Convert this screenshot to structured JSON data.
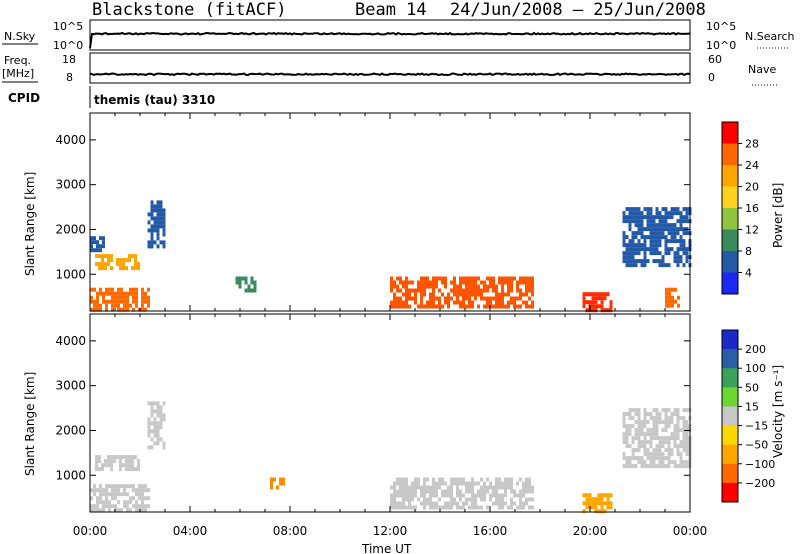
{
  "header": {
    "station": "Blackstone (fitACF)",
    "beam": "Beam 14",
    "date_range": "24/Jun/2008 – 25/Jun/2008"
  },
  "top_panels": {
    "nsky_label": "N.Sky",
    "nsky_ticks": [
      "10^5",
      "10^0"
    ],
    "nsearch_label": "N.Search",
    "nsearch_ticks": [
      "10^5",
      "10^0"
    ],
    "freq_label": "Freq.",
    "freq_unit": "[MHz]",
    "freq_ticks": [
      "18",
      "8"
    ],
    "nave_label": "Nave",
    "nave_ticks": [
      "60",
      "0"
    ],
    "cpid_label": "CPID",
    "cpid_value": "themis (tau) 3310"
  },
  "axes": {
    "ylabel": "Slant Range [km]",
    "y_ticks": [
      "4000",
      "3000",
      "2000",
      "1000"
    ],
    "x_ticks": [
      "00:00",
      "04:00",
      "08:00",
      "12:00",
      "16:00",
      "20:00",
      "00:00"
    ],
    "xlabel": "Time UT"
  },
  "colorbars": {
    "power": {
      "label": "Power [dB]",
      "ticks": [
        "28",
        "24",
        "20",
        "16",
        "12",
        "8",
        "4"
      ],
      "colors": [
        "#ff0000",
        "#ff6600",
        "#ffa500",
        "#ffd21f",
        "#8fc63f",
        "#3a8a5c",
        "#2459a8",
        "#1a28f0"
      ]
    },
    "velocity": {
      "label": "Velocity [m s⁻¹]",
      "ticks": [
        "200",
        "100",
        "50",
        "15",
        "−15",
        "−50",
        "−100",
        "−200"
      ],
      "colors": [
        "#1a28c8",
        "#2a5fa8",
        "#3aa05a",
        "#6cd632",
        "#c8c8c8",
        "#ffd700",
        "#ffa500",
        "#ff6a00",
        "#ff0000"
      ]
    }
  },
  "chart_data": [
    {
      "type": "heatmap",
      "panel": "power",
      "x_range_hours": [
        0,
        24
      ],
      "y_range_km": [
        180,
        4600
      ],
      "regions": [
        {
          "x": [
            0.0,
            2.3
          ],
          "y": [
            200,
            700
          ],
          "value": "high",
          "color": "#ff6a00"
        },
        {
          "x": [
            0.2,
            2.0
          ],
          "y": [
            1150,
            1450
          ],
          "value": "mid",
          "color": "#ffa500"
        },
        {
          "x": [
            0.0,
            0.6
          ],
          "y": [
            1500,
            1850
          ],
          "value": "low",
          "color": "#2459a8"
        },
        {
          "x": [
            2.3,
            3.0
          ],
          "y": [
            1650,
            2650
          ],
          "value": "low",
          "color": "#2459a8"
        },
        {
          "x": [
            5.7,
            6.6
          ],
          "y": [
            650,
            950
          ],
          "value": "mid",
          "color": "#3a8a5c"
        },
        {
          "x": [
            12.0,
            17.7
          ],
          "y": [
            250,
            950
          ],
          "value": "high",
          "color": "#ff5500"
        },
        {
          "x": [
            19.7,
            20.8
          ],
          "y": [
            200,
            600
          ],
          "value": "high",
          "color": "#ff2a00"
        },
        {
          "x": [
            21.3,
            24.0
          ],
          "y": [
            1200,
            2500
          ],
          "value": "low",
          "color": "#2459a8"
        },
        {
          "x": [
            23.0,
            23.6
          ],
          "y": [
            300,
            700
          ],
          "value": "mid",
          "color": "#ff6a00"
        }
      ]
    },
    {
      "type": "heatmap",
      "panel": "velocity",
      "x_range_hours": [
        0,
        24
      ],
      "y_range_km": [
        180,
        4600
      ],
      "regions": [
        {
          "x": [
            0.0,
            2.3
          ],
          "y": [
            200,
            800
          ],
          "value": "ground scatter",
          "color": "#c8c8c8"
        },
        {
          "x": [
            0.2,
            2.0
          ],
          "y": [
            1150,
            1450
          ],
          "value": "ground scatter",
          "color": "#c8c8c8"
        },
        {
          "x": [
            2.3,
            3.0
          ],
          "y": [
            1650,
            2650
          ],
          "value": "ground scatter",
          "color": "#c8c8c8"
        },
        {
          "x": [
            7.2,
            7.8
          ],
          "y": [
            750,
            950
          ],
          "value": "-100",
          "color": "#ff8c00"
        },
        {
          "x": [
            12.0,
            17.7
          ],
          "y": [
            250,
            950
          ],
          "value": "ground scatter",
          "color": "#c8c8c8"
        },
        {
          "x": [
            19.7,
            20.8
          ],
          "y": [
            200,
            600
          ],
          "value": "-50",
          "color": "#ffa500"
        },
        {
          "x": [
            21.3,
            24.0
          ],
          "y": [
            1200,
            2500
          ],
          "value": "ground scatter",
          "color": "#c8c8c8"
        }
      ]
    }
  ]
}
